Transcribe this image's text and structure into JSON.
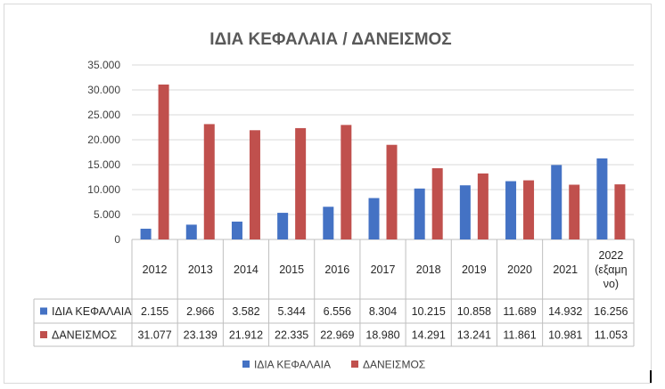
{
  "chart_data": {
    "type": "bar",
    "title": "ΙΔΙΑ ΚΕΦΑΛΑΙΑ / ΔΑΝΕΙΣΜΟΣ",
    "categories": [
      "2012",
      "2013",
      "2014",
      "2015",
      "2016",
      "2017",
      "2018",
      "2019",
      "2020",
      "2021",
      "2022 (εξαμηνο)"
    ],
    "category_label_lines": [
      [
        "2012"
      ],
      [
        "2013"
      ],
      [
        "2014"
      ],
      [
        "2015"
      ],
      [
        "2016"
      ],
      [
        "2017"
      ],
      [
        "2018"
      ],
      [
        "2019"
      ],
      [
        "2020"
      ],
      [
        "2021"
      ],
      [
        "2022",
        "(εξαμη",
        "νο)"
      ]
    ],
    "series": [
      {
        "name": "ΙΔΙΑ ΚΕΦΑΛΑΙΑ",
        "color": "#4472c4",
        "values": [
          2155,
          2966,
          3582,
          5344,
          6556,
          8304,
          10215,
          10858,
          11689,
          14932,
          16256
        ],
        "labels": [
          "2.155",
          "2.966",
          "3.582",
          "5.344",
          "6.556",
          "8.304",
          "10.215",
          "10.858",
          "11.689",
          "14.932",
          "16.256"
        ]
      },
      {
        "name": "ΔΑΝΕΙΣΜΟΣ",
        "color": "#c0504d",
        "values": [
          31077,
          23139,
          21912,
          22335,
          22969,
          18980,
          14291,
          13241,
          11861,
          10981,
          11053
        ],
        "labels": [
          "31.077",
          "23.139",
          "21.912",
          "22.335",
          "22.969",
          "18.980",
          "14.291",
          "13.241",
          "11.861",
          "10.981",
          "11.053"
        ]
      }
    ],
    "ylim": [
      0,
      35000
    ],
    "yticks": [
      0,
      5000,
      10000,
      15000,
      20000,
      25000,
      30000,
      35000
    ],
    "ytick_labels": [
      "0",
      "5.000",
      "10.000",
      "15.000",
      "20.000",
      "25.000",
      "30.000",
      "35.000"
    ],
    "grid": true,
    "legend_position": "bottom",
    "data_table": true
  }
}
